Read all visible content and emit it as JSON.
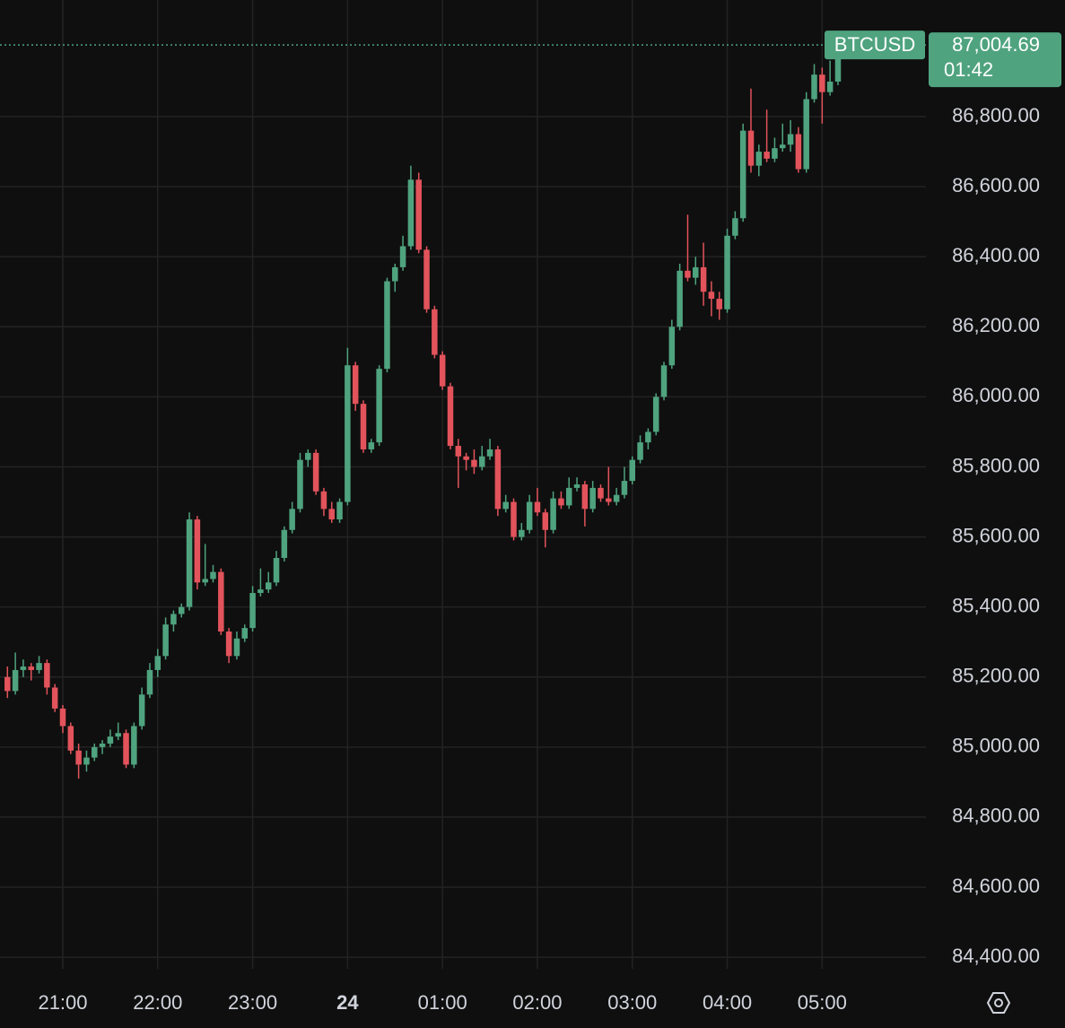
{
  "chart_data": {
    "type": "candlestick",
    "symbol": "BTCUSD",
    "last_price": {
      "value": 87004.69,
      "label": "87,004.69"
    },
    "countdown": "01:42",
    "up_color": "#4fa37f",
    "down_color": "#e2535b",
    "grid": true,
    "xlim": [
      20.3,
      605.6
    ],
    "xticks": [
      {
        "value": 60,
        "label": "21:00"
      },
      {
        "value": 120,
        "label": "22:00"
      },
      {
        "value": 180,
        "label": "23:00"
      },
      {
        "value": 240,
        "label": "24"
      },
      {
        "value": 300,
        "label": "01:00"
      },
      {
        "value": 360,
        "label": "02:00"
      },
      {
        "value": 420,
        "label": "03:00"
      },
      {
        "value": 480,
        "label": "04:00"
      },
      {
        "value": 540,
        "label": "05:00"
      }
    ],
    "ylim": [
      84367,
      87133
    ],
    "yticks": [
      {
        "value": 84400,
        "label": "84,400.00"
      },
      {
        "value": 84600,
        "label": "84,600.00"
      },
      {
        "value": 84800,
        "label": "84,800.00"
      },
      {
        "value": 85000,
        "label": "85,000.00"
      },
      {
        "value": 85200,
        "label": "85,200.00"
      },
      {
        "value": 85400,
        "label": "85,400.00"
      },
      {
        "value": 85600,
        "label": "85,600.00"
      },
      {
        "value": 85800,
        "label": "85,800.00"
      },
      {
        "value": 86000,
        "label": "86,000.00"
      },
      {
        "value": 86200,
        "label": "86,200.00"
      },
      {
        "value": 86400,
        "label": "86,400.00"
      },
      {
        "value": 86600,
        "label": "86,600.00"
      },
      {
        "value": 86800,
        "label": "86,800.00"
      }
    ],
    "candles": [
      [
        25,
        85200,
        85230,
        85140,
        85160
      ],
      [
        30,
        85160,
        85270,
        85150,
        85220
      ],
      [
        35,
        85220,
        85250,
        85200,
        85230
      ],
      [
        40,
        85230,
        85240,
        85190,
        85220
      ],
      [
        45,
        85220,
        85260,
        85210,
        85240
      ],
      [
        50,
        85240,
        85250,
        85150,
        85170
      ],
      [
        55,
        85170,
        85180,
        85100,
        85110
      ],
      [
        60,
        85110,
        85120,
        85040,
        85060
      ],
      [
        65,
        85060,
        85070,
        84980,
        84990
      ],
      [
        70,
        84990,
        85010,
        84910,
        84950
      ],
      [
        75,
        84950,
        84990,
        84930,
        84970
      ],
      [
        80,
        84970,
        85010,
        84960,
        85000
      ],
      [
        85,
        85000,
        85020,
        84980,
        85010
      ],
      [
        90,
        85010,
        85050,
        85000,
        85030
      ],
      [
        95,
        85030,
        85070,
        85020,
        85040
      ],
      [
        100,
        85040,
        85050,
        84940,
        84950
      ],
      [
        105,
        84950,
        85070,
        84940,
        85060
      ],
      [
        110,
        85060,
        85170,
        85050,
        85150
      ],
      [
        115,
        85150,
        85240,
        85140,
        85220
      ],
      [
        120,
        85220,
        85280,
        85200,
        85260
      ],
      [
        125,
        85260,
        85370,
        85250,
        85350
      ],
      [
        130,
        85350,
        85390,
        85330,
        85380
      ],
      [
        135,
        85380,
        85410,
        85370,
        85400
      ],
      [
        140,
        85400,
        85670,
        85390,
        85650
      ],
      [
        145,
        85650,
        85660,
        85450,
        85470
      ],
      [
        150,
        85470,
        85580,
        85460,
        85480
      ],
      [
        155,
        85480,
        85520,
        85470,
        85500
      ],
      [
        160,
        85500,
        85510,
        85320,
        85330
      ],
      [
        165,
        85330,
        85340,
        85240,
        85260
      ],
      [
        170,
        85260,
        85330,
        85250,
        85310
      ],
      [
        175,
        85310,
        85350,
        85300,
        85340
      ],
      [
        180,
        85340,
        85460,
        85330,
        85440
      ],
      [
        185,
        85440,
        85510,
        85430,
        85450
      ],
      [
        190,
        85450,
        85500,
        85440,
        85470
      ],
      [
        195,
        85470,
        85560,
        85460,
        85540
      ],
      [
        200,
        85540,
        85630,
        85530,
        85620
      ],
      [
        205,
        85620,
        85700,
        85610,
        85680
      ],
      [
        210,
        85680,
        85840,
        85670,
        85820
      ],
      [
        215,
        85820,
        85850,
        85800,
        85840
      ],
      [
        220,
        85840,
        85850,
        85720,
        85730
      ],
      [
        225,
        85730,
        85740,
        85660,
        85680
      ],
      [
        230,
        85680,
        85700,
        85640,
        85650
      ],
      [
        235,
        85650,
        85710,
        85640,
        85700
      ],
      [
        240,
        85700,
        86140,
        85690,
        86090
      ],
      [
        245,
        86090,
        86100,
        85960,
        85980
      ],
      [
        250,
        85980,
        85990,
        85840,
        85850
      ],
      [
        255,
        85850,
        85880,
        85840,
        85870
      ],
      [
        260,
        85870,
        86090,
        85860,
        86080
      ],
      [
        265,
        86080,
        86340,
        86070,
        86330
      ],
      [
        270,
        86330,
        86380,
        86300,
        86370
      ],
      [
        275,
        86370,
        86460,
        86360,
        86430
      ],
      [
        280,
        86430,
        86660,
        86420,
        86620
      ],
      [
        285,
        86620,
        86640,
        86410,
        86420
      ],
      [
        290,
        86420,
        86430,
        86240,
        86250
      ],
      [
        295,
        86250,
        86260,
        86110,
        86120
      ],
      [
        300,
        86120,
        86130,
        86020,
        86030
      ],
      [
        305,
        86030,
        86040,
        85850,
        85860
      ],
      [
        310,
        85860,
        85880,
        85740,
        85830
      ],
      [
        315,
        85830,
        85840,
        85790,
        85820
      ],
      [
        320,
        85820,
        85850,
        85780,
        85800
      ],
      [
        325,
        85800,
        85860,
        85790,
        85830
      ],
      [
        330,
        85830,
        85880,
        85820,
        85850
      ],
      [
        335,
        85850,
        85860,
        85660,
        85680
      ],
      [
        340,
        85680,
        85720,
        85670,
        85700
      ],
      [
        345,
        85700,
        85710,
        85590,
        85600
      ],
      [
        350,
        85600,
        85640,
        85590,
        85620
      ],
      [
        355,
        85620,
        85720,
        85610,
        85700
      ],
      [
        360,
        85700,
        85740,
        85660,
        85670
      ],
      [
        365,
        85670,
        85680,
        85570,
        85620
      ],
      [
        370,
        85620,
        85730,
        85610,
        85710
      ],
      [
        375,
        85710,
        85730,
        85680,
        85690
      ],
      [
        380,
        85690,
        85770,
        85680,
        85740
      ],
      [
        385,
        85740,
        85770,
        85730,
        85750
      ],
      [
        390,
        85750,
        85760,
        85630,
        85680
      ],
      [
        395,
        85680,
        85760,
        85670,
        85740
      ],
      [
        400,
        85740,
        85750,
        85700,
        85710
      ],
      [
        405,
        85710,
        85800,
        85690,
        85700
      ],
      [
        410,
        85700,
        85740,
        85690,
        85720
      ],
      [
        415,
        85720,
        85800,
        85710,
        85760
      ],
      [
        420,
        85760,
        85830,
        85750,
        85820
      ],
      [
        425,
        85820,
        85890,
        85810,
        85870
      ],
      [
        430,
        85870,
        85910,
        85850,
        85900
      ],
      [
        435,
        85900,
        86010,
        85890,
        86000
      ],
      [
        440,
        86000,
        86100,
        85990,
        86090
      ],
      [
        445,
        86090,
        86220,
        86080,
        86200
      ],
      [
        450,
        86200,
        86380,
        86190,
        86360
      ],
      [
        455,
        86360,
        86520,
        86330,
        86340
      ],
      [
        460,
        86340,
        86400,
        86320,
        86370
      ],
      [
        465,
        86370,
        86440,
        86260,
        86300
      ],
      [
        470,
        86300,
        86330,
        86230,
        86280
      ],
      [
        475,
        86280,
        86300,
        86220,
        86250
      ],
      [
        480,
        86250,
        86480,
        86240,
        86460
      ],
      [
        485,
        86460,
        86530,
        86450,
        86510
      ],
      [
        490,
        86510,
        86780,
        86500,
        86760
      ],
      [
        495,
        86760,
        86880,
        86640,
        86660
      ],
      [
        500,
        86660,
        86720,
        86630,
        86700
      ],
      [
        505,
        86700,
        86820,
        86670,
        86680
      ],
      [
        510,
        86680,
        86740,
        86670,
        86710
      ],
      [
        515,
        86710,
        86780,
        86700,
        86720
      ],
      [
        520,
        86720,
        86790,
        86700,
        86750
      ],
      [
        525,
        86750,
        86770,
        86640,
        86650
      ],
      [
        530,
        86650,
        86870,
        86640,
        86850
      ],
      [
        535,
        86850,
        86950,
        86840,
        86920
      ],
      [
        540,
        86920,
        86940,
        86780,
        86870
      ],
      [
        545,
        86870,
        86960,
        86860,
        86900
      ],
      [
        550,
        86900,
        87020,
        86890,
        87004.69
      ]
    ]
  }
}
